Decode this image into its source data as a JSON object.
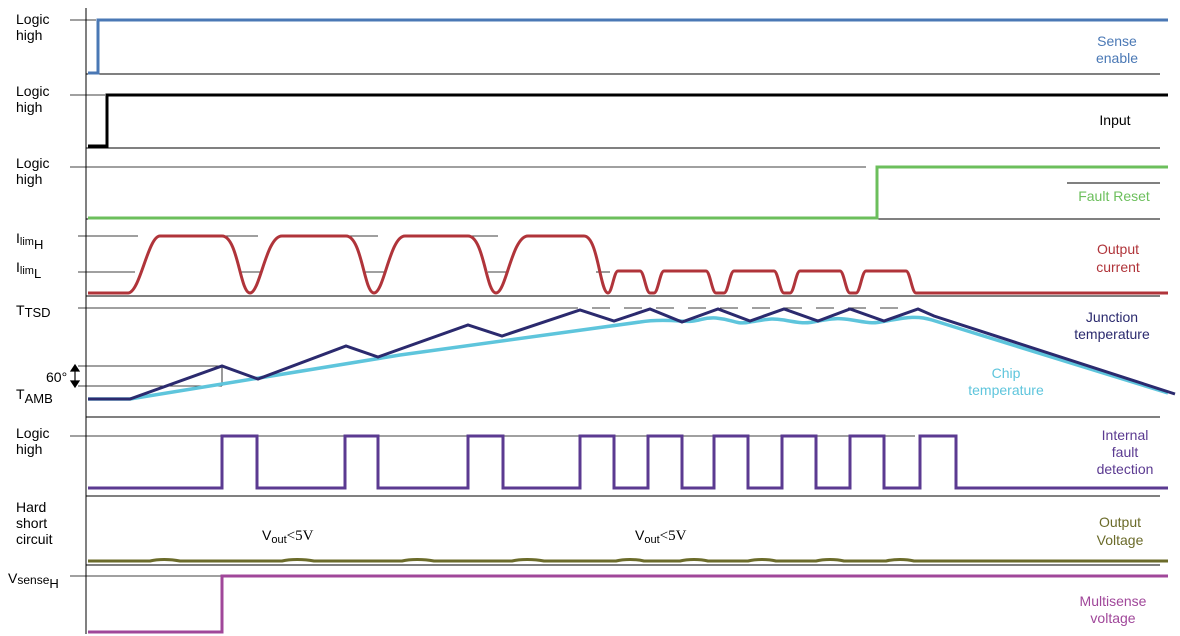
{
  "lanes": {
    "sense_enable": {
      "left": [
        "Logic",
        "high"
      ],
      "right": [
        "Sense",
        "enable"
      ],
      "color": "#4a78b5"
    },
    "input": {
      "left": [
        "Logic",
        "high"
      ],
      "right": [
        "Input"
      ],
      "color": "#000000"
    },
    "fault_reset": {
      "left": [
        "Logic",
        "high"
      ],
      "right": [
        "Fault Reset"
      ],
      "color": "#6cbf5c"
    },
    "output_current": {
      "left_high": {
        "main": "I",
        "sub": "lim",
        "sub2": "H"
      },
      "left_low": {
        "main": "I",
        "sub": "lim",
        "sub2": "L"
      },
      "right": [
        "Output",
        "current"
      ],
      "color": "#b0343a"
    },
    "junction_temperature": {
      "left_top": {
        "main": "T",
        "sub": "TSD"
      },
      "left_bottom": {
        "main": "T",
        "sub": "AMB"
      },
      "delta_label": "60°",
      "right": [
        "Junction",
        "temperature"
      ],
      "color": "#2b2a6e"
    },
    "chip_temperature": {
      "label": [
        "Chip",
        "temperature"
      ],
      "color": "#5ec5dc"
    },
    "internal_fault_detection": {
      "left": [
        "Logic",
        "high"
      ],
      "right": [
        "Internal",
        "fault",
        "detection"
      ],
      "color": "#5b3a91"
    },
    "output_voltage": {
      "left": [
        "Hard",
        "short",
        "circuit"
      ],
      "right": [
        "Output",
        "Voltage"
      ],
      "annotation": {
        "main": "V",
        "sub": "out",
        "rest": "<5V"
      },
      "color": "#6b6b2a"
    },
    "multisense_voltage": {
      "left": {
        "main": "V",
        "sub": "sense",
        "sub2": "H"
      },
      "right": [
        "Multisense",
        "voltage"
      ],
      "color": "#a0479a"
    }
  }
}
